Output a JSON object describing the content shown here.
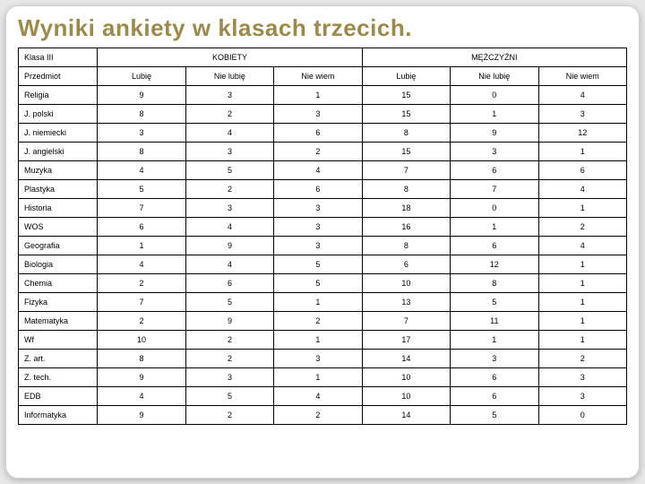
{
  "title": "Wyniki ankiety w klasach trzecich.",
  "header": {
    "klasa": "Klasa III",
    "group1": "KOBIETY",
    "group2": "MĘŻCZYŹNI"
  },
  "subheader": {
    "przedmiot": "Przedmiot",
    "lubie": "Lubię",
    "nielubie": "Nie lubię",
    "niewiem": "Nie wiem"
  },
  "rows": [
    {
      "subject": "Religia",
      "k": [
        "9",
        "3",
        "1"
      ],
      "m": [
        "15",
        "0",
        "4"
      ]
    },
    {
      "subject": "J. polski",
      "k": [
        "8",
        "2",
        "3"
      ],
      "m": [
        "15",
        "1",
        "3"
      ]
    },
    {
      "subject": "J. niemiecki",
      "k": [
        "3",
        "4",
        "6"
      ],
      "m": [
        "8",
        "9",
        "12"
      ]
    },
    {
      "subject": "J. angielski",
      "k": [
        "8",
        "3",
        "2"
      ],
      "m": [
        "15",
        "3",
        "1"
      ]
    },
    {
      "subject": "Muzyka",
      "k": [
        "4",
        "5",
        "4"
      ],
      "m": [
        "7",
        "6",
        "6"
      ]
    },
    {
      "subject": "Plastyka",
      "k": [
        "5",
        "2",
        "6"
      ],
      "m": [
        "8",
        "7",
        "4"
      ]
    },
    {
      "subject": "Historia",
      "k": [
        "7",
        "3",
        "3"
      ],
      "m": [
        "18",
        "0",
        "1"
      ]
    },
    {
      "subject": "WOS",
      "k": [
        "6",
        "4",
        "3"
      ],
      "m": [
        "16",
        "1",
        "2"
      ]
    },
    {
      "subject": "Geografia",
      "k": [
        "1",
        "9",
        "3"
      ],
      "m": [
        "8",
        "6",
        "4"
      ]
    },
    {
      "subject": "Biologia",
      "k": [
        "4",
        "4",
        "5"
      ],
      "m": [
        "6",
        "12",
        "1"
      ]
    },
    {
      "subject": "Chemia",
      "k": [
        "2",
        "6",
        "5"
      ],
      "m": [
        "10",
        "8",
        "1"
      ]
    },
    {
      "subject": "Fizyka",
      "k": [
        "7",
        "5",
        "1"
      ],
      "m": [
        "13",
        "5",
        "1"
      ]
    },
    {
      "subject": "Matematyka",
      "k": [
        "2",
        "9",
        "2"
      ],
      "m": [
        "7",
        "11",
        "1"
      ]
    },
    {
      "subject": "Wf",
      "k": [
        "10",
        "2",
        "1"
      ],
      "m": [
        "17",
        "1",
        "1"
      ]
    },
    {
      "subject": "Z. art.",
      "k": [
        "8",
        "2",
        "3"
      ],
      "m": [
        "14",
        "3",
        "2"
      ]
    },
    {
      "subject": "Z. tech.",
      "k": [
        "9",
        "3",
        "1"
      ],
      "m": [
        "10",
        "6",
        "3"
      ]
    },
    {
      "subject": "EDB",
      "k": [
        "4",
        "5",
        "4"
      ],
      "m": [
        "10",
        "6",
        "3"
      ]
    },
    {
      "subject": "Informatyka",
      "k": [
        "9",
        "2",
        "2"
      ],
      "m": [
        "14",
        "5",
        "0"
      ]
    }
  ],
  "colors": {
    "title": "#9c8a4a",
    "border": "#000000",
    "card_bg": "#ffffff",
    "page_bg": "#e8e8e8"
  }
}
